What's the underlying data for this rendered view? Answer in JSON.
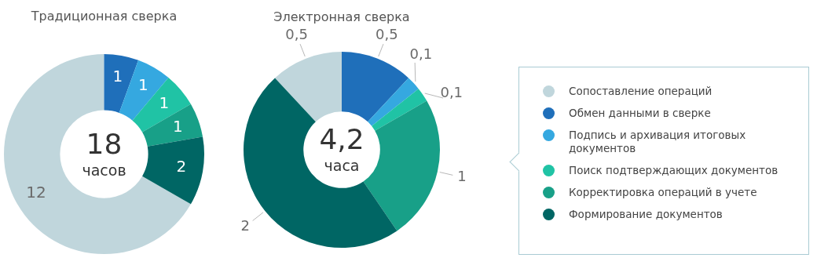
{
  "chart_data": [
    {
      "type": "donut",
      "title": "Традиционная сверка",
      "categories": [
        null,
        null,
        null,
        null,
        null,
        null
      ],
      "values": [
        12,
        1,
        1,
        1,
        1,
        2
      ],
      "colors": [
        "#c0d6dc",
        "#1f6fba",
        "#35a8e0",
        "#20c3a5",
        "#18a088",
        "#006664"
      ],
      "data_labels": true,
      "legend": false,
      "annotations": [
        "18",
        "часов"
      ]
    },
    {
      "type": "donut",
      "title": "Электронная сверка",
      "categories": [
        "Сопоставление операций",
        "Обмен данными в сверке",
        "Подпись и архивация итоговых документов",
        "Поиск подтверждающих документов",
        "Корректировка операций в учете",
        "Формирование документов"
      ],
      "values": [
        0.5,
        0.5,
        0.1,
        0.1,
        1,
        2
      ],
      "colors": [
        "#c0d6dc",
        "#1f6fba",
        "#35a8e0",
        "#20c3a5",
        "#18a088",
        "#006664"
      ],
      "value_labels": [
        "0,5",
        "0,5",
        "0,1",
        "0,1",
        "1",
        "2"
      ],
      "legend": "right",
      "annotations": [
        "4,2",
        "часа"
      ]
    }
  ]
}
